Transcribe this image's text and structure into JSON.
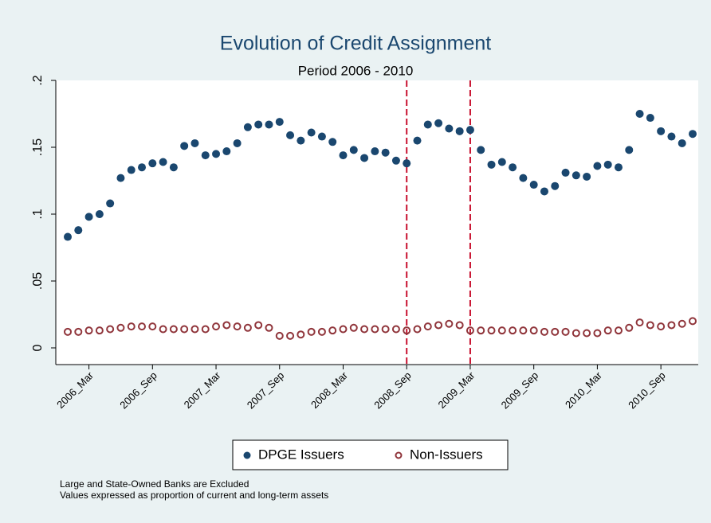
{
  "chart_data": {
    "type": "scatter",
    "title": "Evolution of Credit Assignment",
    "subtitle": "Period 2006 - 2010",
    "categories": [
      null,
      null,
      "2006_Mar",
      null,
      null,
      null,
      null,
      null,
      "2006_Sep",
      null,
      null,
      null,
      null,
      null,
      "2007_Mar",
      null,
      null,
      null,
      null,
      null,
      "2007_Sep",
      null,
      null,
      null,
      null,
      null,
      "2008_Mar",
      null,
      null,
      null,
      null,
      null,
      "2008_Sep",
      null,
      null,
      null,
      null,
      null,
      "2009_Mar",
      null,
      null,
      null,
      null,
      null,
      "2009_Sep",
      null,
      null,
      null,
      null,
      null,
      "2010_Mar",
      null,
      null,
      null,
      null,
      null,
      "2010_Sep",
      null,
      null,
      null
    ],
    "series": [
      {
        "name": "DPGE Issuers",
        "color": "#1a476f",
        "marker": "filled",
        "values": [
          0.083,
          0.088,
          0.098,
          0.1,
          0.108,
          0.127,
          0.133,
          0.135,
          0.138,
          0.139,
          0.135,
          0.151,
          0.153,
          0.144,
          0.145,
          0.147,
          0.153,
          0.165,
          0.167,
          0.167,
          0.169,
          0.159,
          0.155,
          0.161,
          0.158,
          0.154,
          0.144,
          0.148,
          0.142,
          0.147,
          0.146,
          0.14,
          0.138,
          0.155,
          0.167,
          0.168,
          0.164,
          0.162,
          0.163,
          0.148,
          0.137,
          0.139,
          0.135,
          0.127,
          0.122,
          0.117,
          0.121,
          0.131,
          0.129,
          0.128,
          0.136,
          0.137,
          0.135,
          0.148,
          0.175,
          0.172,
          0.162,
          0.158,
          0.153,
          0.16
        ]
      },
      {
        "name": "Non-Issuers",
        "color": "#90353b",
        "marker": "hollow",
        "values": [
          0.012,
          0.012,
          0.013,
          0.013,
          0.014,
          0.015,
          0.016,
          0.016,
          0.016,
          0.014,
          0.014,
          0.014,
          0.014,
          0.014,
          0.016,
          0.017,
          0.016,
          0.015,
          0.017,
          0.015,
          0.009,
          0.009,
          0.01,
          0.012,
          0.012,
          0.013,
          0.014,
          0.015,
          0.014,
          0.014,
          0.014,
          0.014,
          0.013,
          0.014,
          0.016,
          0.017,
          0.018,
          0.017,
          0.013,
          0.013,
          0.013,
          0.013,
          0.013,
          0.013,
          0.013,
          0.012,
          0.012,
          0.012,
          0.011,
          0.011,
          0.011,
          0.013,
          0.013,
          0.015,
          0.019,
          0.017,
          0.016,
          0.017,
          0.018,
          0.02
        ]
      }
    ],
    "vlines": [
      "2008_Sep",
      "2009_Mar"
    ],
    "vline_color": "#c8102e",
    "ylim": [
      -0.0125,
      0.2
    ],
    "yticks": [
      0,
      {
        "value": 0.05,
        "label": ".05"
      },
      {
        "value": 0.1,
        "label": ".1"
      },
      {
        "value": 0.15,
        "label": ".15"
      },
      {
        "value": 0.2,
        "label": ".2"
      }
    ],
    "grid": false,
    "legend": "bottom",
    "notes": [
      "Large and State-Owned Banks are Excluded",
      "Values expressed as proportion of current and long-term assets"
    ]
  }
}
